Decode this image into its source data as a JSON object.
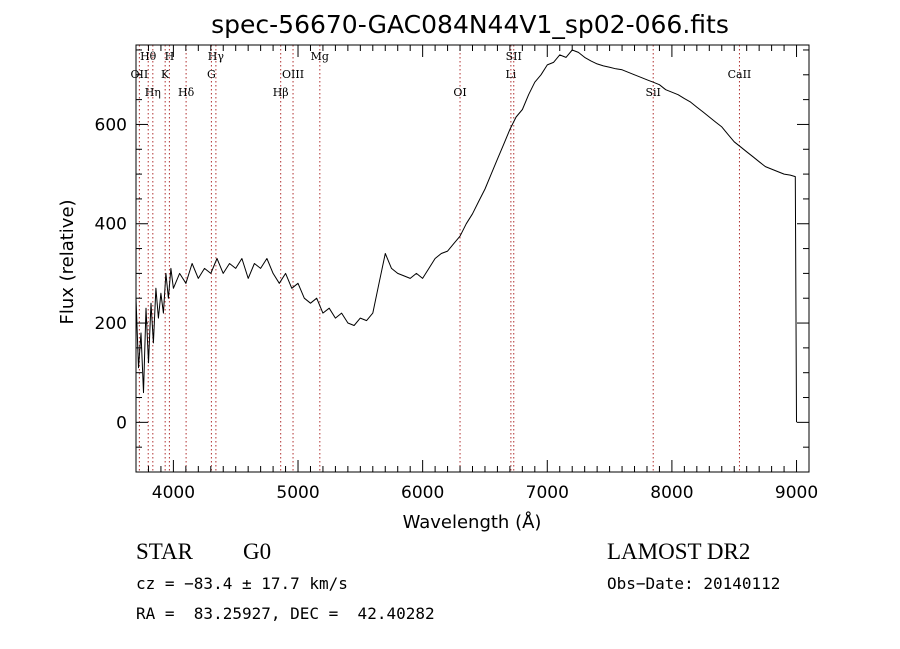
{
  "chart_data": {
    "type": "line",
    "title": "spec-56670-GAC084N44V1_sp02-066.fits",
    "xlabel": "Wavelength (Å)",
    "ylabel": "Flux (relative)",
    "xlim": [
      3700,
      9100
    ],
    "ylim": [
      -100,
      760
    ],
    "xticks": [
      4000,
      5000,
      6000,
      7000,
      8000,
      9000
    ],
    "xtick_labels": [
      "4000",
      "5000",
      "6000",
      "7000",
      "8000",
      "9000"
    ],
    "yticks": [
      0,
      200,
      400,
      600
    ],
    "ytick_labels": [
      "0",
      "200",
      "400",
      "600"
    ],
    "series": [
      {
        "name": "spectrum",
        "x": [
          3700,
          3720,
          3740,
          3760,
          3780,
          3800,
          3820,
          3840,
          3860,
          3880,
          3900,
          3920,
          3940,
          3960,
          3980,
          4000,
          4050,
          4100,
          4150,
          4200,
          4250,
          4300,
          4350,
          4400,
          4450,
          4500,
          4550,
          4600,
          4650,
          4700,
          4750,
          4800,
          4850,
          4900,
          4950,
          5000,
          5050,
          5100,
          5150,
          5200,
          5250,
          5300,
          5350,
          5400,
          5450,
          5500,
          5550,
          5600,
          5650,
          5700,
          5750,
          5800,
          5850,
          5900,
          5950,
          6000,
          6050,
          6100,
          6150,
          6200,
          6250,
          6300,
          6350,
          6400,
          6450,
          6500,
          6550,
          6600,
          6650,
          6700,
          6750,
          6800,
          6850,
          6900,
          6950,
          7000,
          7050,
          7100,
          7150,
          7200,
          7250,
          7300,
          7350,
          7400,
          7450,
          7500,
          7550,
          7600,
          7650,
          7700,
          7750,
          7800,
          7850,
          7900,
          7950,
          8000,
          8050,
          8100,
          8150,
          8200,
          8250,
          8300,
          8350,
          8400,
          8450,
          8500,
          8550,
          8600,
          8650,
          8700,
          8750,
          8800,
          8850,
          8900,
          8950,
          8990,
          9000
        ],
        "y": [
          250,
          110,
          180,
          60,
          230,
          120,
          240,
          160,
          270,
          210,
          260,
          220,
          300,
          250,
          310,
          270,
          300,
          280,
          320,
          290,
          310,
          300,
          330,
          300,
          320,
          310,
          330,
          290,
          320,
          310,
          330,
          300,
          280,
          300,
          270,
          280,
          250,
          240,
          250,
          220,
          230,
          210,
          220,
          200,
          195,
          210,
          205,
          220,
          280,
          340,
          310,
          300,
          295,
          290,
          300,
          290,
          310,
          330,
          340,
          345,
          360,
          375,
          400,
          420,
          445,
          470,
          500,
          530,
          560,
          590,
          615,
          630,
          660,
          685,
          700,
          720,
          725,
          740,
          735,
          750,
          745,
          735,
          728,
          722,
          718,
          715,
          712,
          710,
          705,
          700,
          695,
          690,
          685,
          680,
          670,
          665,
          660,
          652,
          645,
          635,
          625,
          615,
          605,
          595,
          580,
          565,
          555,
          545,
          535,
          525,
          515,
          510,
          505,
          500,
          498,
          495,
          0
        ]
      }
    ],
    "spectral_lines": [
      {
        "name": "OII",
        "wavelength": 3727
      },
      {
        "name": "Hθ",
        "wavelength": 3798
      },
      {
        "name": "Hη",
        "wavelength": 3835
      },
      {
        "name": "K",
        "wavelength": 3934
      },
      {
        "name": "H",
        "wavelength": 3968
      },
      {
        "name": "Hδ",
        "wavelength": 4102
      },
      {
        "name": "G",
        "wavelength": 4305
      },
      {
        "name": "Hγ",
        "wavelength": 4341
      },
      {
        "name": "Hβ",
        "wavelength": 4861
      },
      {
        "name": "OIII",
        "wavelength": 4960
      },
      {
        "name": "Mg",
        "wavelength": 5175
      },
      {
        "name": "OI",
        "wavelength": 6300
      },
      {
        "name": "Li",
        "wavelength": 6708
      },
      {
        "name": "SII",
        "wavelength": 6731
      },
      {
        "name": "SiI",
        "wavelength": 7850
      },
      {
        "name": "CaII",
        "wavelength": 8542
      }
    ]
  },
  "info": {
    "object_class": "STAR",
    "subclass": "G0",
    "survey": "LAMOST DR2",
    "cz": "cz = −83.4 ± 17.7 km/s",
    "obs_date": "Obs−Date: 20140112",
    "coords": "RA =  83.25927, DEC =  42.40282"
  },
  "colors": {
    "line": "#000000",
    "marker": "#b03030",
    "axis": "#000000"
  }
}
